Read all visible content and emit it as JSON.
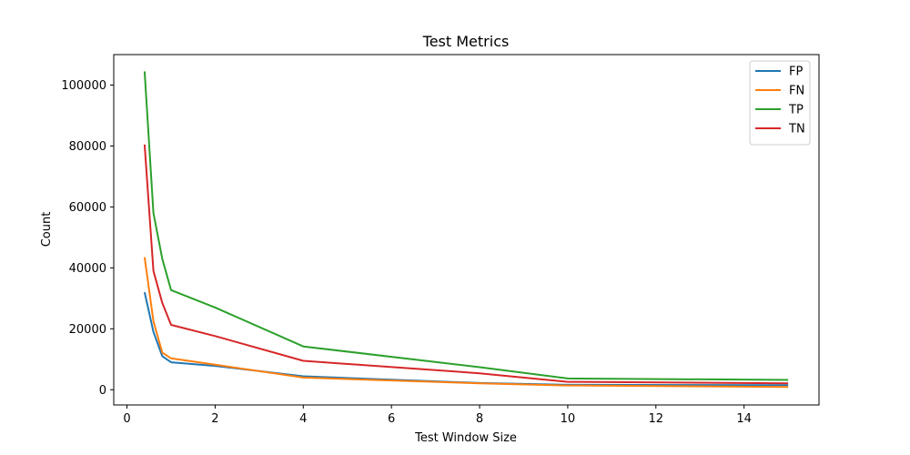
{
  "chart_data": {
    "type": "line",
    "title": "Test Metrics",
    "xlabel": "Test Window Size",
    "ylabel": "Count",
    "xlim": [
      -0.3,
      15.7
    ],
    "ylim": [
      -5000,
      110000
    ],
    "xticks": [
      0,
      2,
      4,
      6,
      8,
      10,
      12,
      14
    ],
    "yticks": [
      0,
      20000,
      40000,
      60000,
      80000,
      100000
    ],
    "grid": false,
    "legend_position": "top-right",
    "x": [
      0.4,
      0.6,
      0.8,
      1,
      2,
      4,
      8,
      10,
      15
    ],
    "series": [
      {
        "name": "FP",
        "color": "#1f77b4",
        "values": [
          32000,
          19000,
          11000,
          9000,
          7800,
          4400,
          2200,
          1600,
          1500
        ]
      },
      {
        "name": "FN",
        "color": "#ff7f0e",
        "values": [
          43500,
          22500,
          12200,
          10300,
          8200,
          4000,
          2100,
          1400,
          900
        ]
      },
      {
        "name": "TP",
        "color": "#2ca02c",
        "values": [
          104500,
          58000,
          43000,
          32700,
          27000,
          14200,
          7400,
          3700,
          3200
        ]
      },
      {
        "name": "TN",
        "color": "#d62728",
        "values": [
          80500,
          39000,
          28500,
          21300,
          17600,
          9500,
          5400,
          2600,
          2100
        ]
      }
    ]
  }
}
